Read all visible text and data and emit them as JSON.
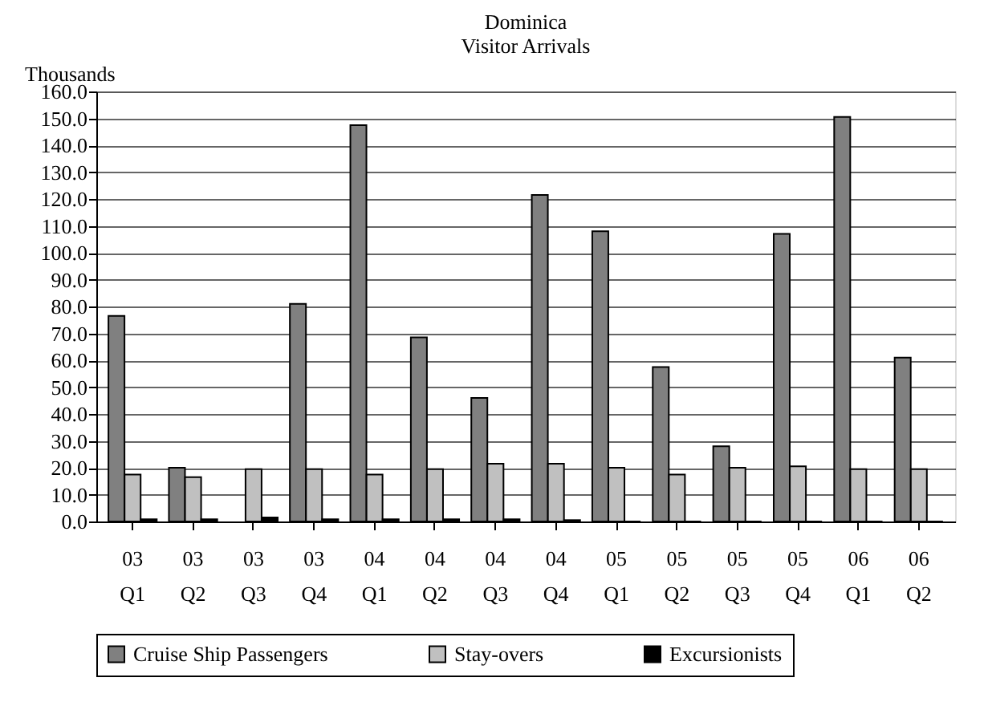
{
  "chart_data": {
    "type": "bar",
    "title": "Dominica\nVisitor Arrivals",
    "ylabel": "Thousands",
    "categories": [
      "03 Q1",
      "03 Q2",
      "03 Q3",
      "03 Q4",
      "04 Q1",
      "04 Q2",
      "04 Q3",
      "04 Q4",
      "05 Q1",
      "05 Q2",
      "05 Q3",
      "05 Q4",
      "06 Q1",
      "06 Q2"
    ],
    "series": [
      {
        "name": "Cruise Ship Passengers",
        "color": "#808080",
        "values": [
          76.5,
          20,
          null,
          81,
          147.5,
          68.5,
          46,
          121.5,
          108,
          57.5,
          28,
          107,
          150.5,
          61
        ]
      },
      {
        "name": "Stay-overs",
        "color": "#c0c0c0",
        "values": [
          17.5,
          16.5,
          19.5,
          19.5,
          17.5,
          19.5,
          21.5,
          21.5,
          20,
          17.5,
          20,
          20.5,
          19.5,
          19.5
        ]
      },
      {
        "name": "Excursionists",
        "color": "#000000",
        "values": [
          0.8,
          0.8,
          1.5,
          0.8,
          0.8,
          0.8,
          0.8,
          0.5,
          0,
          0,
          0,
          0,
          0,
          0
        ]
      }
    ],
    "ylim": [
      0,
      160
    ],
    "yticks": [
      {
        "value": 0,
        "label": "0.0"
      },
      {
        "value": 10,
        "label": "10.0"
      },
      {
        "value": 20,
        "label": "20.0"
      },
      {
        "value": 30,
        "label": "30.0"
      },
      {
        "value": 40,
        "label": "40.0"
      },
      {
        "value": 50,
        "label": "50.0"
      },
      {
        "value": 60,
        "label": "60.0"
      },
      {
        "value": 70,
        "label": "70.0"
      },
      {
        "value": 80,
        "label": "80.0"
      },
      {
        "value": 90,
        "label": "90.0"
      },
      {
        "value": 100,
        "label": "100.0"
      },
      {
        "value": 110,
        "label": "110.0"
      },
      {
        "value": 120,
        "label": "120.0"
      },
      {
        "value": 130,
        "label": "130.0"
      },
      {
        "value": 140,
        "label": "140.0"
      },
      {
        "value": 150,
        "label": "150.0"
      },
      {
        "value": 160,
        "label": "160.0"
      }
    ],
    "grid": "y",
    "legend": "bottom"
  }
}
